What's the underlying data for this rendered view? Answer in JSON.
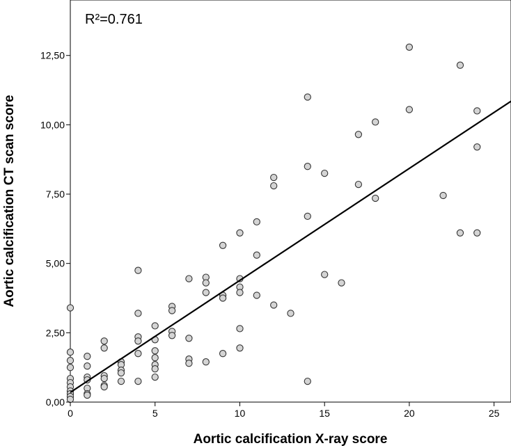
{
  "chart_data": {
    "type": "scatter",
    "title": "",
    "xlabel": "Aortic calcification X-ray score",
    "ylabel": "Aortic calcification CT scan score",
    "xlim": [
      0,
      26
    ],
    "ylim": [
      0,
      14.5
    ],
    "x_ticks": [
      0,
      5,
      10,
      15,
      20,
      25
    ],
    "x_tick_labels": [
      "0",
      "5",
      "10",
      "15",
      "20",
      "25"
    ],
    "y_ticks": [
      0,
      2.5,
      5,
      7.5,
      10,
      12.5
    ],
    "y_tick_labels": [
      "0,00",
      "2,50",
      "5,00",
      "7,50",
      "10,00",
      "12,50"
    ],
    "annotation": "R²=0.761",
    "grid": false,
    "colors": {
      "marker_fill": "#d4d4d4",
      "marker_stroke": "#333333",
      "line": "#000000"
    },
    "fit_line": {
      "x": [
        0,
        26
      ],
      "y": [
        0.35,
        10.85
      ]
    },
    "points": [
      [
        0,
        3.4
      ],
      [
        0,
        1.8
      ],
      [
        0,
        1.5
      ],
      [
        0,
        1.25
      ],
      [
        0,
        0.85
      ],
      [
        0,
        0.7
      ],
      [
        0,
        0.55
      ],
      [
        0,
        0.4
      ],
      [
        0,
        0.3
      ],
      [
        0,
        0.2
      ],
      [
        0,
        0.1
      ],
      [
        1,
        1.65
      ],
      [
        1,
        1.3
      ],
      [
        1,
        0.9
      ],
      [
        1,
        0.8
      ],
      [
        1,
        0.5
      ],
      [
        1,
        0.3
      ],
      [
        1,
        0.25
      ],
      [
        2,
        2.2
      ],
      [
        2,
        1.95
      ],
      [
        2,
        0.95
      ],
      [
        2,
        0.85
      ],
      [
        2,
        0.6
      ],
      [
        2,
        0.55
      ],
      [
        3,
        1.45
      ],
      [
        3,
        1.35
      ],
      [
        3,
        1.15
      ],
      [
        3,
        1.05
      ],
      [
        3,
        0.75
      ],
      [
        4,
        4.75
      ],
      [
        4,
        3.2
      ],
      [
        4,
        2.35
      ],
      [
        4,
        2.2
      ],
      [
        4,
        1.75
      ],
      [
        4,
        0.75
      ],
      [
        5,
        2.75
      ],
      [
        5,
        2.25
      ],
      [
        5,
        1.85
      ],
      [
        5,
        1.6
      ],
      [
        5,
        1.35
      ],
      [
        5,
        1.2
      ],
      [
        5,
        0.9
      ],
      [
        6,
        3.45
      ],
      [
        6,
        3.3
      ],
      [
        6,
        2.55
      ],
      [
        6,
        2.4
      ],
      [
        7,
        4.45
      ],
      [
        7,
        2.3
      ],
      [
        7,
        1.55
      ],
      [
        7,
        1.4
      ],
      [
        8,
        4.5
      ],
      [
        8,
        4.3
      ],
      [
        8,
        3.95
      ],
      [
        8,
        1.45
      ],
      [
        9,
        5.65
      ],
      [
        9,
        3.85
      ],
      [
        9,
        3.75
      ],
      [
        9,
        1.75
      ],
      [
        10,
        6.1
      ],
      [
        10,
        4.45
      ],
      [
        10,
        4.15
      ],
      [
        10,
        3.95
      ],
      [
        10,
        2.65
      ],
      [
        10,
        1.95
      ],
      [
        11,
        6.5
      ],
      [
        11,
        5.3
      ],
      [
        11,
        3.85
      ],
      [
        12,
        8.1
      ],
      [
        12,
        7.8
      ],
      [
        12,
        3.5
      ],
      [
        13,
        3.2
      ],
      [
        14,
        11.0
      ],
      [
        14,
        8.5
      ],
      [
        14,
        6.7
      ],
      [
        14,
        0.75
      ],
      [
        15,
        8.25
      ],
      [
        15,
        4.6
      ],
      [
        16,
        4.3
      ],
      [
        17,
        9.65
      ],
      [
        17,
        7.85
      ],
      [
        18,
        10.1
      ],
      [
        18,
        7.35
      ],
      [
        20,
        12.8
      ],
      [
        20,
        10.55
      ],
      [
        22,
        7.45
      ],
      [
        23,
        12.15
      ],
      [
        23,
        6.1
      ],
      [
        24,
        10.5
      ],
      [
        24,
        9.2
      ],
      [
        24,
        6.1
      ]
    ]
  }
}
